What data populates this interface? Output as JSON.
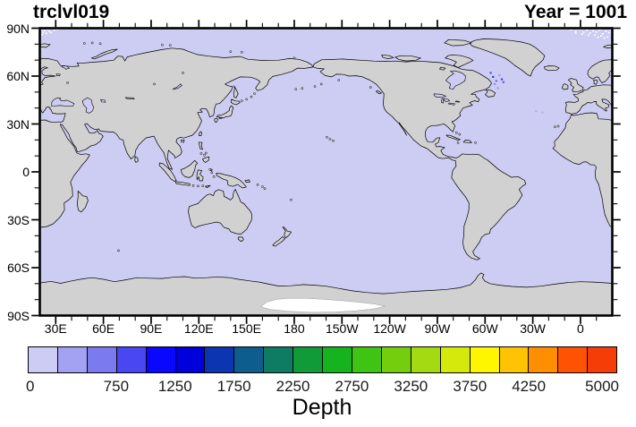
{
  "header": {
    "title_left": "trclvl019",
    "title_right": "Year = 1001"
  },
  "axes": {
    "lat_labels": [
      "90N",
      "60N",
      "30N",
      "0",
      "30S",
      "60S",
      "90S"
    ],
    "lon_labels": [
      "30E",
      "60E",
      "90E",
      "120E",
      "150E",
      "180",
      "150W",
      "120W",
      "90W",
      "60W",
      "30W",
      "0"
    ]
  },
  "colorbar": {
    "label": "Depth",
    "tick_labels": [
      "0",
      "750",
      "1250",
      "1750",
      "2250",
      "2750",
      "3250",
      "3750",
      "4250",
      "5000"
    ],
    "colors": [
      "#cdccf5",
      "#a2a1f2",
      "#7b7aee",
      "#4947f1",
      "#0907fe",
      "#0000da",
      "#0b35b1",
      "#0d5d8e",
      "#0e7c63",
      "#109b38",
      "#15b31d",
      "#3fc414",
      "#74ce0d",
      "#a3da12",
      "#d6e90d",
      "#fef600",
      "#ffc303",
      "#ff8e01",
      "#ff5203",
      "#f53d08"
    ]
  },
  "map": {
    "ocean_color": "#cdccf3",
    "land_color": "#d2d1d2",
    "coast_color": "#000000",
    "missing_color": "#ffffff",
    "frame_color": "#000000"
  },
  "chart_data": {
    "type": "heatmap",
    "title": "trclvl019",
    "annotation_right": "Year = 1001",
    "colorbar_label": "Depth",
    "levels": [
      0,
      250,
      500,
      750,
      1000,
      1250,
      1500,
      1750,
      2000,
      2250,
      2500,
      2750,
      3000,
      3250,
      3500,
      3750,
      4000,
      4250,
      4500,
      4750,
      5000
    ],
    "labeled_levels": [
      0,
      750,
      1250,
      1750,
      2250,
      2750,
      3250,
      3750,
      4250,
      5000
    ],
    "colors": [
      "#cdccf5",
      "#a2a1f2",
      "#7b7aee",
      "#4947f1",
      "#0907fe",
      "#0000da",
      "#0b35b1",
      "#0d5d8e",
      "#0e7c63",
      "#109b38",
      "#15b31d",
      "#3fc414",
      "#74ce0d",
      "#a3da12",
      "#d6e90d",
      "#fef600",
      "#ffc303",
      "#ff8e01",
      "#ff5203",
      "#f53d08"
    ],
    "x_axis": {
      "tick_labels": [
        "30E",
        "60E",
        "90E",
        "120E",
        "150E",
        "180",
        "150W",
        "120W",
        "90W",
        "60W",
        "30W",
        "0"
      ],
      "range_deg_east": [
        20,
        380
      ],
      "grid": false
    },
    "y_axis": {
      "tick_labels": [
        "90N",
        "60N",
        "30N",
        "0",
        "30S",
        "60S",
        "90S"
      ],
      "range_deg_north": [
        -90,
        90
      ],
      "grid": false
    },
    "projection": "equirectangular, Pacific-centered world map",
    "field_summary": "Ocean filled with the lowest depth bin color; white patches near Antarctic ice shelves indicate missing values; a few scattered deeper-bin grid points appear in the Labrador Sea / North Atlantic."
  }
}
